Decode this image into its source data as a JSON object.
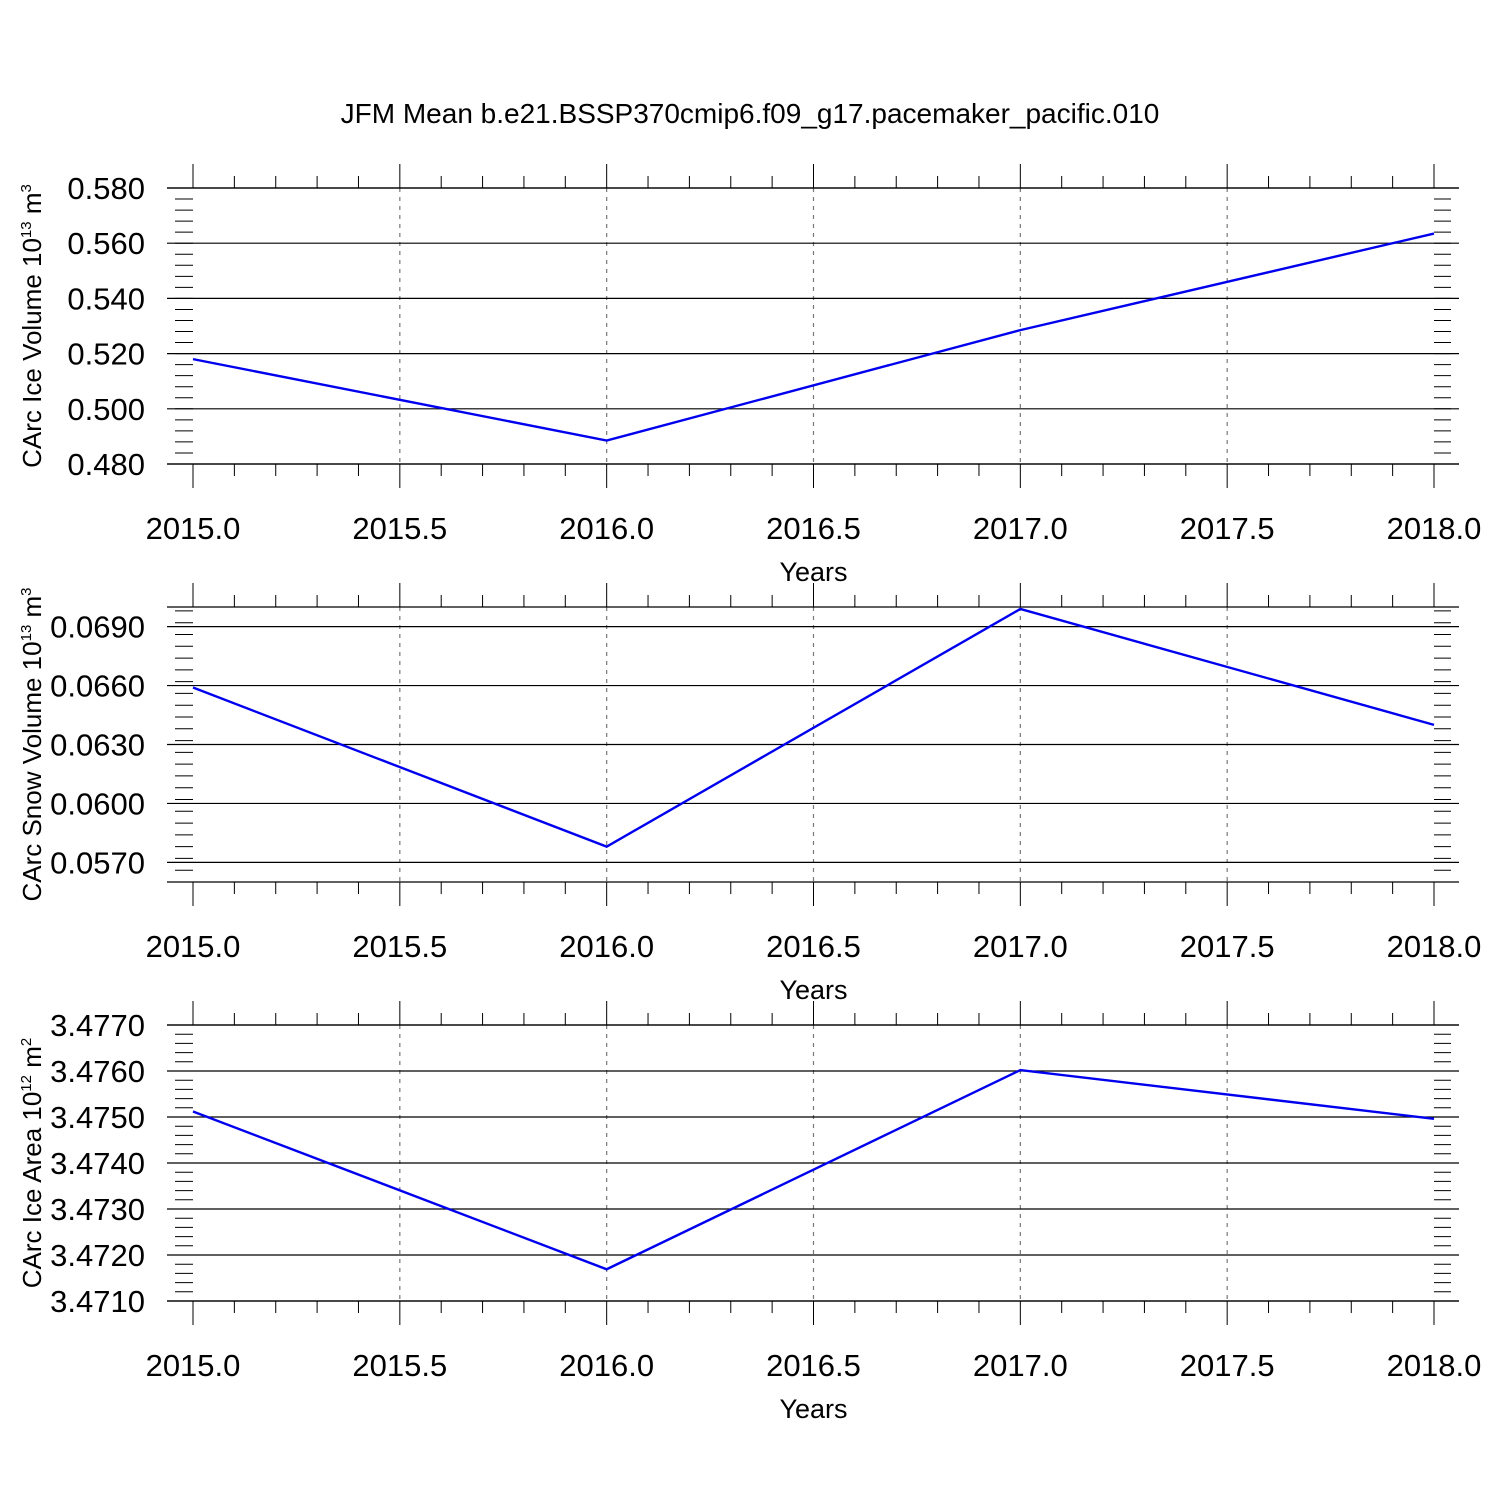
{
  "title": "JFM Mean b.e21.BSSP370cmip6.f09_g17.pacemaker_pacific.010",
  "chart_data": [
    {
      "type": "line",
      "xlabel": "Years",
      "ylabel": "CArc Ice Volume 10",
      "ylabel_sup": "13",
      "ylabel_unit": "m",
      "ylabel_unit_sup": "3",
      "xlim": [
        2015.0,
        2018.0
      ],
      "ylim": [
        0.48,
        0.58
      ],
      "x_ticks": [
        "2015.0",
        "2015.5",
        "2016.0",
        "2016.5",
        "2017.0",
        "2017.5",
        "2018.0"
      ],
      "y_ticks": [
        "0.480",
        "0.500",
        "0.520",
        "0.540",
        "0.560",
        "0.580"
      ],
      "series": [
        {
          "x": [
            2015,
            2016,
            2017,
            2018
          ],
          "values": [
            0.518,
            0.4885,
            0.5285,
            0.5635
          ],
          "color": "#0000ee"
        }
      ]
    },
    {
      "type": "line",
      "xlabel": "Years",
      "ylabel": "CArc Snow Volume 10",
      "ylabel_sup": "13",
      "ylabel_unit": "m",
      "ylabel_unit_sup": "3",
      "xlim": [
        2015.0,
        2018.0
      ],
      "ylim": [
        0.056,
        0.07
      ],
      "x_ticks": [
        "2015.0",
        "2015.5",
        "2016.0",
        "2016.5",
        "2017.0",
        "2017.5",
        "2018.0"
      ],
      "y_ticks": [
        "0.0570",
        "0.0600",
        "0.0630",
        "0.0660",
        "0.0690"
      ],
      "series": [
        {
          "x": [
            2015,
            2016,
            2017,
            2018
          ],
          "values": [
            0.0659,
            0.0578,
            0.0699,
            0.064
          ],
          "color": "#0000ee"
        }
      ]
    },
    {
      "type": "line",
      "xlabel": "Years",
      "ylabel": "CArc Ice Area 10",
      "ylabel_sup": "12",
      "ylabel_unit": "m",
      "ylabel_unit_sup": "2",
      "xlim": [
        2015.0,
        2018.0
      ],
      "ylim": [
        3.471,
        3.477
      ],
      "x_ticks": [
        "2015.0",
        "2015.5",
        "2016.0",
        "2016.5",
        "2017.0",
        "2017.5",
        "2018.0"
      ],
      "y_ticks": [
        "3.4710",
        "3.4720",
        "3.4730",
        "3.4740",
        "3.4750",
        "3.4760",
        "3.4770"
      ],
      "series": [
        {
          "x": [
            2015,
            2016,
            2017,
            2018
          ],
          "values": [
            3.47512,
            3.47169,
            3.47602,
            3.47496
          ],
          "color": "#0000ee"
        }
      ]
    }
  ]
}
